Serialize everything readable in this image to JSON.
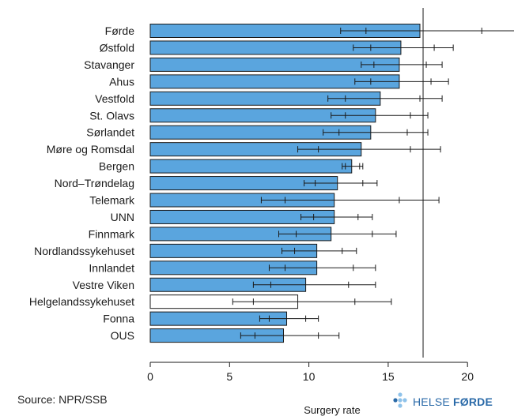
{
  "footer": {
    "source": "Source: NPR/SSB",
    "logo_word1": "HELSE ",
    "logo_word2": "FØRDE"
  },
  "colors": {
    "bar_fill": "#5aa5de",
    "bar_highlight_fill": "#ffffff",
    "bar_stroke": "#1a1a1a",
    "logo_blue": "#2a6aa8",
    "logo_light": "#8ec2ea"
  },
  "chart_data": {
    "type": "bar",
    "orientation": "horizontal",
    "xlabel": "Surgery rate",
    "xlim": [
      0,
      23
    ],
    "xticks": [
      0,
      5,
      10,
      15,
      20
    ],
    "reference_line": 17.2,
    "grid": false,
    "categories": [
      "Førde",
      "Østfold",
      "Stavanger",
      "Ahus",
      "Vestfold",
      "St. Olavs",
      "Sørlandet",
      "Møre og Romsdal",
      "Bergen",
      "Nord–Trøndelag",
      "Telemark",
      "UNN",
      "Finnmark",
      "Nordlandssykehuset",
      "Innlandet",
      "Vestre Viken",
      "Helgelandssykehuset",
      "Fonna",
      "OUS"
    ],
    "values": [
      17.0,
      15.8,
      15.7,
      15.7,
      14.5,
      14.2,
      13.9,
      13.3,
      12.7,
      11.8,
      11.6,
      11.6,
      11.4,
      10.5,
      10.5,
      9.8,
      9.3,
      8.6,
      8.4
    ],
    "highlight": [
      "Helgelandssykehuset"
    ],
    "intervals": [
      {
        "outer": [
          12.0,
          23.5
        ],
        "inner": [
          13.6,
          20.9
        ]
      },
      {
        "outer": [
          12.8,
          19.1
        ],
        "inner": [
          13.9,
          17.9
        ]
      },
      {
        "outer": [
          13.3,
          18.4
        ],
        "inner": [
          14.1,
          17.4
        ]
      },
      {
        "outer": [
          12.9,
          18.8
        ],
        "inner": [
          13.9,
          17.7
        ]
      },
      {
        "outer": [
          11.2,
          18.4
        ],
        "inner": [
          12.3,
          17.0
        ]
      },
      {
        "outer": [
          11.4,
          17.5
        ],
        "inner": [
          12.3,
          16.4
        ]
      },
      {
        "outer": [
          10.9,
          17.5
        ],
        "inner": [
          11.9,
          16.2
        ]
      },
      {
        "outer": [
          9.3,
          18.3
        ],
        "inner": [
          10.6,
          16.4
        ]
      },
      {
        "outer": [
          12.1,
          13.4
        ],
        "inner": [
          12.3,
          13.2
        ]
      },
      {
        "outer": [
          9.7,
          14.3
        ],
        "inner": [
          10.4,
          13.4
        ]
      },
      {
        "outer": [
          7.0,
          18.2
        ],
        "inner": [
          8.5,
          15.7
        ]
      },
      {
        "outer": [
          9.5,
          14.0
        ],
        "inner": [
          10.3,
          13.1
        ]
      },
      {
        "outer": [
          8.1,
          15.5
        ],
        "inner": [
          9.2,
          14.0
        ]
      },
      {
        "outer": [
          8.3,
          13.0
        ],
        "inner": [
          9.1,
          12.1
        ]
      },
      {
        "outer": [
          7.5,
          14.2
        ],
        "inner": [
          8.5,
          12.8
        ]
      },
      {
        "outer": [
          6.5,
          14.2
        ],
        "inner": [
          7.6,
          12.5
        ]
      },
      {
        "outer": [
          5.2,
          15.2
        ],
        "inner": [
          6.5,
          12.9
        ]
      },
      {
        "outer": [
          6.9,
          10.6
        ],
        "inner": [
          7.5,
          9.8
        ]
      },
      {
        "outer": [
          5.7,
          11.9
        ],
        "inner": [
          6.6,
          10.6
        ]
      }
    ]
  }
}
